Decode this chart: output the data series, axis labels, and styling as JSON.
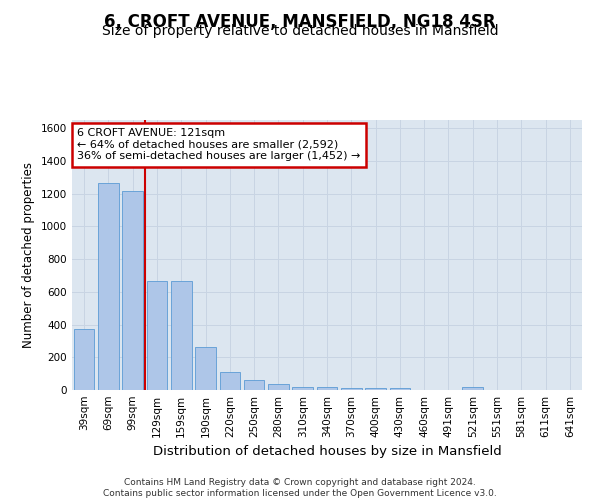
{
  "title1": "6, CROFT AVENUE, MANSFIELD, NG18 4SR",
  "title2": "Size of property relative to detached houses in Mansfield",
  "xlabel": "Distribution of detached houses by size in Mansfield",
  "ylabel": "Number of detached properties",
  "categories": [
    "39sqm",
    "69sqm",
    "99sqm",
    "129sqm",
    "159sqm",
    "190sqm",
    "220sqm",
    "250sqm",
    "280sqm",
    "310sqm",
    "340sqm",
    "370sqm",
    "400sqm",
    "430sqm",
    "460sqm",
    "491sqm",
    "521sqm",
    "551sqm",
    "581sqm",
    "611sqm",
    "641sqm"
  ],
  "values": [
    370,
    1265,
    1215,
    665,
    665,
    265,
    113,
    63,
    35,
    20,
    18,
    15,
    12,
    10,
    0,
    0,
    20,
    0,
    0,
    0,
    0
  ],
  "bar_color": "#aec6e8",
  "bar_edge_color": "#5b9bd5",
  "property_line_x": 2.5,
  "annotation_title": "6 CROFT AVENUE: 121sqm",
  "annotation_line1": "← 64% of detached houses are smaller (2,592)",
  "annotation_line2": "36% of semi-detached houses are larger (1,452) →",
  "annotation_box_color": "#ffffff",
  "annotation_box_edge_color": "#cc0000",
  "vline_color": "#cc0000",
  "ylim": [
    0,
    1650
  ],
  "yticks": [
    0,
    200,
    400,
    600,
    800,
    1000,
    1200,
    1400,
    1600
  ],
  "grid_color": "#c8d4e3",
  "bg_color": "#dce6f0",
  "footnote": "Contains HM Land Registry data © Crown copyright and database right 2024.\nContains public sector information licensed under the Open Government Licence v3.0.",
  "title_fontsize": 12,
  "subtitle_fontsize": 10,
  "xlabel_fontsize": 9.5,
  "ylabel_fontsize": 8.5,
  "tick_fontsize": 7.5,
  "annot_fontsize": 8
}
